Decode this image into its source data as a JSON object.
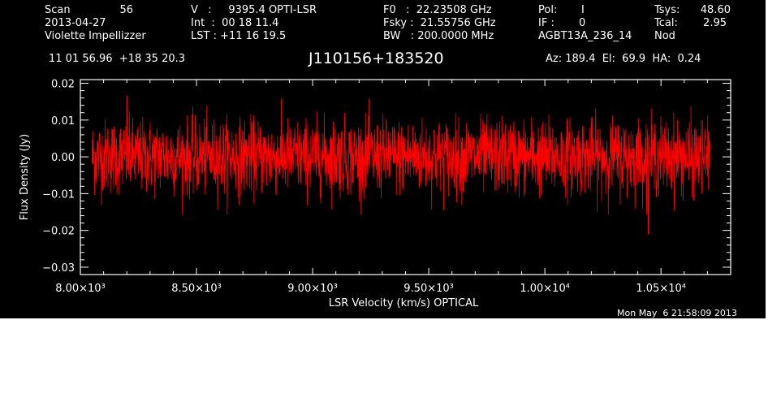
{
  "header": {
    "scan_label": "Scan",
    "scan_value": "56",
    "date": "2013-04-27",
    "observer": "Violette Impellizzer",
    "v_line": "V   :     9395.4 OPTI-LSR",
    "int_line": "Int  :  00 18 11.4",
    "lst_line": "LST : +11 16 19.5",
    "f0_line": "F0   :  22.23508 GHz",
    "fsky_line": "Fsky :  21.55756 GHz",
    "bw_line": "BW   : 200.0000 MHz",
    "pol_label": "Pol:",
    "pol_value": "I",
    "if_label": "IF :",
    "if_value": "0",
    "project": "AGBT13A_236_14",
    "tsys_label": "Tsys:",
    "tsys_value": "48.60",
    "tcal_label": "Tcal:",
    "tcal_value": "2.95",
    "mode": "Nod",
    "coords": "11 01 56.96  +18 35 20.3",
    "source": "J110156+183520",
    "azelha": "Az: 189.4  El:  69.9  HA:  0.24",
    "timestamp": "Mon May  6 21:58:09 2013"
  },
  "chart_data": {
    "type": "line",
    "title": "J110156+183520",
    "xlabel": "LSR Velocity (km/s) OPTICAL",
    "ylabel": "Flux Density (Jy)",
    "xlim": [
      8000,
      10800
    ],
    "ylim": [
      -0.032,
      0.021
    ],
    "x_ticks": [
      8000,
      8500,
      9000,
      9500,
      10000,
      10500
    ],
    "x_tick_labels": [
      "8.00×10³",
      "8.50×10³",
      "9.00×10³",
      "9.50×10³",
      "1.00×10⁴",
      "1.05×10⁴"
    ],
    "y_ticks": [
      -0.03,
      -0.02,
      -0.01,
      0.0,
      0.01,
      0.02
    ],
    "y_tick_labels": [
      "−0.03",
      "−0.02",
      "−0.01",
      "0.00",
      "0.01",
      "0.02"
    ],
    "grid": false,
    "series": [
      {
        "color": "#ff0000",
        "x_start": 8050,
        "x_end": 10710,
        "n_points": 2400,
        "mean": 0.0,
        "rms": 0.005,
        "envelope_y": [
          0.016,
          -0.021
        ],
        "features": [
          {
            "x": 10445,
            "y": -0.021
          },
          {
            "x": 8200,
            "y": 0.0165
          }
        ]
      }
    ]
  },
  "colors": {
    "background": "#000000",
    "foreground": "#ffffff",
    "trace": "#ff0000"
  }
}
